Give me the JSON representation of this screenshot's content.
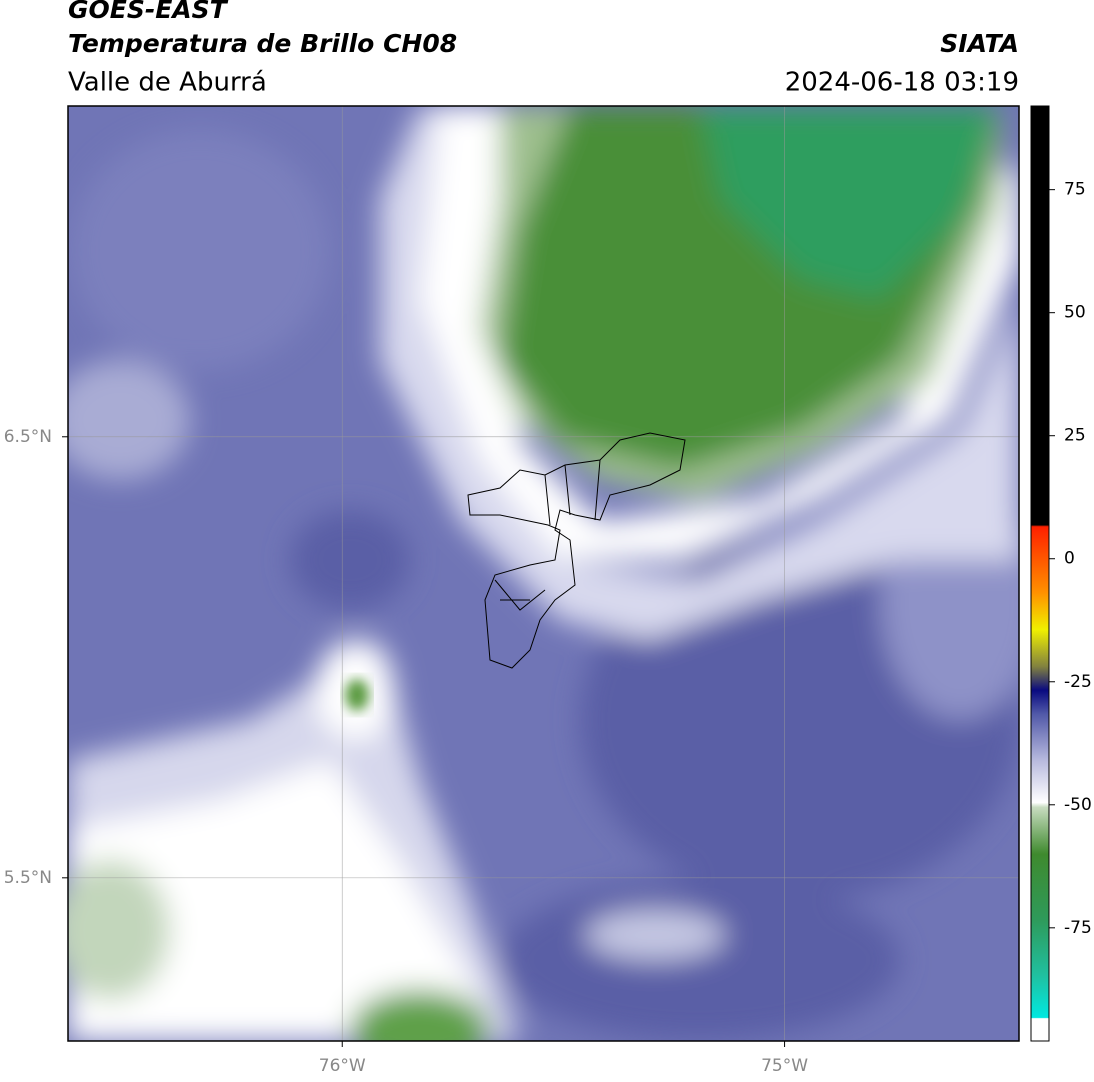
{
  "header": {
    "satellite": "GOES-EAST",
    "product": "Temperatura de Brillo CH08",
    "region": "Valle de Aburrá",
    "source": "SIATA",
    "datetime": "2024-06-18 03:19"
  },
  "map": {
    "lonlim": [
      -76.62,
      -74.47
    ],
    "latlim": [
      5.13,
      7.25
    ],
    "lon_ticks": [
      {
        "value": -76,
        "label": "76°W"
      },
      {
        "value": -75,
        "label": "75°W"
      }
    ],
    "lat_ticks": [
      {
        "value": 6.5,
        "label": "6.5°N"
      },
      {
        "value": 5.5,
        "label": "5.5°N"
      }
    ]
  },
  "colorbar": {
    "range": [
      -98,
      92
    ],
    "ticks": [
      75,
      50,
      25,
      0,
      -25,
      -50,
      -75
    ]
  }
}
